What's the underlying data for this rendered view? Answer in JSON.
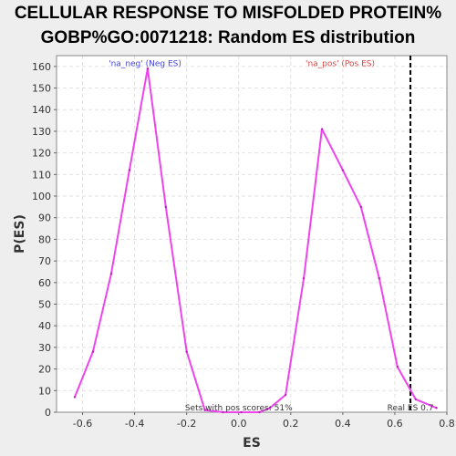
{
  "title_line1": "CELLULAR RESPONSE TO MISFOLDED PROTEIN%",
  "title_line2": "GOBP%GO:0071218: Random ES distribution",
  "chart_data": {
    "type": "line",
    "xlabel": "ES",
    "ylabel": "P(ES)",
    "xlim": [
      -0.7,
      0.8
    ],
    "ylim": [
      0,
      165
    ],
    "xticks": [
      -0.6,
      -0.4,
      -0.2,
      0,
      0.2,
      0.4,
      0.6,
      0.8
    ],
    "xtick_labels": [
      "-0.6",
      "-0.4",
      "-0.2",
      "0.0",
      "0.2",
      "0.4",
      "0.6",
      "0.8"
    ],
    "yticks": [
      0,
      10,
      20,
      30,
      40,
      50,
      60,
      70,
      80,
      90,
      100,
      110,
      120,
      130,
      140,
      150,
      160
    ],
    "ytick_labels": [
      "0",
      "10",
      "20",
      "30",
      "40",
      "50",
      "60",
      "70",
      "80",
      "90",
      "100",
      "110",
      "120",
      "130",
      "140",
      "150",
      "160"
    ],
    "grid": true,
    "series": [
      {
        "color": "#ee44ee",
        "x": [
          -0.63,
          -0.56,
          -0.49,
          -0.42,
          -0.35,
          -0.28,
          -0.2,
          -0.13,
          -0.06,
          0.01,
          0.08,
          0.12,
          0.18,
          0.25,
          0.32,
          0.4,
          0.47,
          0.54,
          0.61,
          0.68,
          0.76
        ],
        "y": [
          7,
          28,
          64,
          112,
          159,
          95,
          28,
          1,
          0,
          0,
          0,
          2,
          8,
          62,
          131,
          112,
          95,
          62,
          21,
          6,
          2
        ]
      }
    ],
    "vline": {
      "x": 0.66,
      "style": "dashed",
      "color": "#000000"
    },
    "annotations": {
      "neg": {
        "text": "'na_neg' (Neg ES)",
        "color": "#4444dd",
        "x": -0.36,
        "y": 163
      },
      "pos": {
        "text": "'na_pos' (Pos ES)",
        "color": "#dd4444",
        "x": 0.39,
        "y": 163
      },
      "sets": {
        "text": "Sets with pos scores: 51%",
        "color": "#333333",
        "x": 0,
        "y": 0.5
      },
      "real": {
        "text": "Real ES 0.7",
        "color": "#333333",
        "x": 0.66,
        "y": 0.5
      }
    }
  }
}
